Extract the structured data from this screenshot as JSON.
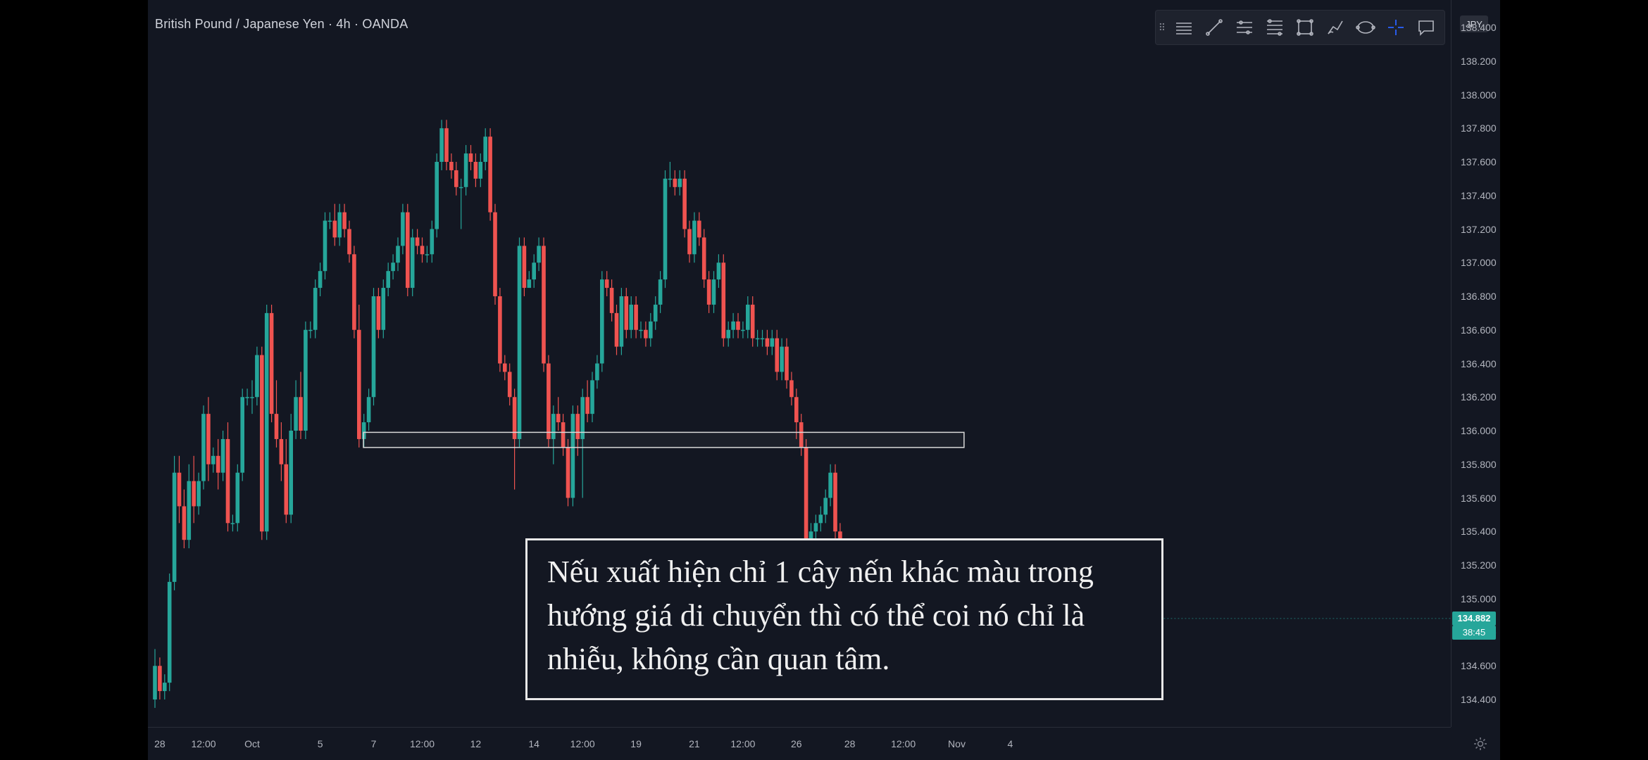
{
  "header": {
    "symbol_title": "British Pound / Japanese Yen · 4h · OANDA",
    "currency_badge": "JPY"
  },
  "toolbar": {
    "items": [
      {
        "icon": "grip-icon"
      },
      {
        "icon": "horizontal-lines-icon"
      },
      {
        "icon": "trend-line-icon"
      },
      {
        "icon": "parallel-channel-icon"
      },
      {
        "icon": "fib-retracement-icon"
      },
      {
        "icon": "rectangle-icon"
      },
      {
        "icon": "brush-icon"
      },
      {
        "icon": "ellipse-icon"
      },
      {
        "icon": "crosshair-icon"
      },
      {
        "icon": "comment-icon"
      }
    ]
  },
  "price_scale": {
    "ticks": [
      "138.400",
      "138.200",
      "138.000",
      "137.800",
      "137.600",
      "137.400",
      "137.200",
      "137.000",
      "136.800",
      "136.600",
      "136.400",
      "136.200",
      "136.000",
      "135.800",
      "135.600",
      "135.400",
      "135.200",
      "135.000",
      "134.800",
      "134.600",
      "134.400"
    ],
    "last_price": "134.882",
    "countdown": "38:45"
  },
  "time_scale": {
    "labels": [
      "28",
      "12:00",
      "Oct",
      "5",
      "7",
      "12:00",
      "12",
      "14",
      "12:00",
      "19",
      "21",
      "12:00",
      "26",
      "28",
      "12:00",
      "Nov",
      "4"
    ]
  },
  "caption": {
    "line1": "Nếu xuất hiện chỉ 1 cây nến khác màu trong",
    "line2": "hướng giá di chuyển thì có thể coi nó chỉ là",
    "line3": "nhiễu, không cần quan tâm."
  },
  "colors": {
    "background": "#131722",
    "bullish": "#26a69a",
    "bearish": "#ef5350",
    "zone_border": "#d9d9d9"
  },
  "chart_data": {
    "type": "candlestick",
    "title": "British Pound / Japanese Yen · 4h · OANDA",
    "ylim": [
      134.2,
      138.45
    ],
    "zone": {
      "low": 135.9,
      "high": 135.99,
      "x_start": 42.9,
      "x_end": 166.5
    },
    "x_ticks": [
      {
        "label": "28",
        "x": 1
      },
      {
        "label": "12:00",
        "x": 10
      },
      {
        "label": "Oct",
        "x": 20
      },
      {
        "label": "5",
        "x": 34
      },
      {
        "label": "7",
        "x": 45
      },
      {
        "label": "12:00",
        "x": 55
      },
      {
        "label": "12",
        "x": 66
      },
      {
        "label": "14",
        "x": 78
      },
      {
        "label": "12:00",
        "x": 88
      },
      {
        "label": "19",
        "x": 99
      },
      {
        "label": "21",
        "x": 111
      },
      {
        "label": "12:00",
        "x": 121
      },
      {
        "label": "26",
        "x": 132
      },
      {
        "label": "28",
        "x": 143
      },
      {
        "label": "12:00",
        "x": 154
      },
      {
        "label": "Nov",
        "x": 165
      },
      {
        "label": "4",
        "x": 176
      }
    ],
    "candles": [
      [
        134.4,
        134.6,
        134.35,
        134.7
      ],
      [
        134.6,
        134.45,
        134.4,
        134.65
      ],
      [
        134.45,
        134.5,
        134.4,
        134.55
      ],
      [
        134.5,
        135.1,
        134.45,
        135.15
      ],
      [
        135.1,
        135.75,
        135.05,
        135.85
      ],
      [
        135.75,
        135.55,
        135.45,
        135.85
      ],
      [
        135.55,
        135.35,
        135.3,
        135.65
      ],
      [
        135.35,
        135.7,
        135.3,
        135.8
      ],
      [
        135.7,
        135.55,
        135.45,
        135.85
      ],
      [
        135.55,
        135.7,
        135.5,
        135.75
      ],
      [
        135.7,
        136.1,
        135.65,
        136.15
      ],
      [
        136.1,
        135.8,
        135.7,
        136.2
      ],
      [
        135.8,
        135.85,
        135.75,
        135.9
      ],
      [
        135.85,
        135.75,
        135.65,
        135.95
      ],
      [
        135.75,
        135.95,
        135.7,
        136.0
      ],
      [
        135.95,
        135.45,
        135.4,
        136.05
      ],
      [
        135.45,
        135.45,
        135.4,
        135.5
      ],
      [
        135.45,
        135.75,
        135.4,
        135.8
      ],
      [
        135.75,
        136.2,
        135.7,
        136.25
      ],
      [
        136.2,
        136.2,
        136.15,
        136.25
      ],
      [
        136.2,
        136.2,
        136.1,
        136.3
      ],
      [
        136.2,
        136.45,
        136.15,
        136.5
      ],
      [
        136.45,
        135.4,
        135.35,
        136.5
      ],
      [
        135.4,
        136.7,
        135.35,
        136.75
      ],
      [
        136.7,
        136.1,
        136.05,
        136.75
      ],
      [
        136.1,
        135.95,
        135.9,
        136.3
      ],
      [
        135.95,
        135.8,
        135.7,
        136.05
      ],
      [
        135.8,
        135.5,
        135.45,
        135.95
      ],
      [
        135.5,
        136.0,
        135.45,
        136.1
      ],
      [
        136.0,
        136.2,
        135.95,
        136.3
      ],
      [
        136.2,
        136.0,
        135.95,
        136.35
      ],
      [
        136.0,
        136.6,
        135.95,
        136.65
      ],
      [
        136.6,
        136.6,
        136.55,
        136.65
      ],
      [
        136.6,
        136.85,
        136.55,
        136.9
      ],
      [
        136.85,
        136.95,
        136.8,
        137.0
      ],
      [
        136.95,
        137.25,
        136.9,
        137.3
      ],
      [
        137.25,
        137.25,
        137.2,
        137.3
      ],
      [
        137.25,
        137.15,
        137.1,
        137.35
      ],
      [
        137.15,
        137.3,
        137.1,
        137.35
      ],
      [
        137.3,
        137.2,
        137.15,
        137.35
      ],
      [
        137.2,
        137.05,
        137.0,
        137.25
      ],
      [
        137.05,
        136.6,
        136.55,
        137.1
      ],
      [
        136.6,
        135.95,
        135.9,
        136.75
      ],
      [
        135.95,
        136.05,
        135.9,
        136.1
      ],
      [
        136.05,
        136.2,
        136.0,
        136.25
      ],
      [
        136.2,
        136.8,
        136.15,
        136.85
      ],
      [
        136.8,
        136.6,
        136.55,
        136.85
      ],
      [
        136.6,
        136.85,
        136.55,
        136.9
      ],
      [
        136.85,
        136.95,
        136.8,
        137.0
      ],
      [
        136.95,
        137.0,
        136.9,
        137.05
      ],
      [
        137.0,
        137.1,
        136.95,
        137.15
      ],
      [
        137.1,
        137.3,
        137.05,
        137.35
      ],
      [
        137.3,
        136.85,
        136.8,
        137.35
      ],
      [
        136.85,
        137.15,
        136.8,
        137.2
      ],
      [
        137.15,
        137.1,
        137.05,
        137.2
      ],
      [
        137.1,
        137.05,
        137.0,
        137.15
      ],
      [
        137.05,
        137.05,
        137.0,
        137.1
      ],
      [
        137.05,
        137.2,
        137.0,
        137.25
      ],
      [
        137.2,
        137.6,
        137.15,
        137.65
      ],
      [
        137.6,
        137.8,
        137.55,
        137.85
      ],
      [
        137.8,
        137.6,
        137.55,
        137.85
      ],
      [
        137.6,
        137.55,
        137.5,
        137.65
      ],
      [
        137.55,
        137.45,
        137.4,
        137.6
      ],
      [
        137.45,
        137.45,
        137.2,
        137.5
      ],
      [
        137.45,
        137.65,
        137.4,
        137.7
      ],
      [
        137.65,
        137.6,
        137.55,
        137.7
      ],
      [
        137.6,
        137.5,
        137.45,
        137.65
      ],
      [
        137.5,
        137.6,
        137.45,
        137.65
      ],
      [
        137.6,
        137.75,
        137.55,
        137.8
      ],
      [
        137.75,
        137.3,
        137.25,
        137.8
      ],
      [
        137.3,
        136.8,
        136.75,
        137.35
      ],
      [
        136.8,
        136.4,
        136.35,
        136.85
      ],
      [
        136.4,
        136.35,
        136.3,
        136.45
      ],
      [
        136.35,
        136.2,
        136.15,
        136.4
      ],
      [
        136.2,
        135.95,
        135.65,
        136.25
      ],
      [
        135.95,
        137.1,
        135.9,
        137.15
      ],
      [
        137.1,
        136.85,
        136.8,
        137.15
      ],
      [
        136.85,
        136.9,
        136.85,
        136.95
      ],
      [
        136.9,
        137.0,
        136.85,
        137.05
      ],
      [
        137.0,
        137.1,
        136.95,
        137.15
      ],
      [
        137.1,
        136.4,
        136.35,
        137.15
      ],
      [
        136.4,
        135.95,
        135.9,
        136.45
      ],
      [
        135.95,
        136.1,
        135.8,
        136.15
      ],
      [
        136.1,
        136.05,
        136.0,
        136.2
      ],
      [
        136.05,
        135.9,
        135.85,
        136.1
      ],
      [
        135.9,
        135.6,
        135.55,
        135.95
      ],
      [
        135.6,
        136.1,
        135.55,
        136.15
      ],
      [
        136.1,
        135.95,
        135.85,
        136.15
      ],
      [
        135.95,
        136.2,
        135.6,
        136.25
      ],
      [
        136.2,
        136.1,
        136.05,
        136.3
      ],
      [
        136.1,
        136.3,
        136.05,
        136.35
      ],
      [
        136.3,
        136.4,
        136.25,
        136.45
      ],
      [
        136.4,
        136.9,
        136.35,
        136.95
      ],
      [
        136.9,
        136.85,
        136.8,
        136.95
      ],
      [
        136.85,
        136.7,
        136.65,
        136.9
      ],
      [
        136.7,
        136.5,
        136.45,
        136.75
      ],
      [
        136.5,
        136.8,
        136.45,
        136.85
      ],
      [
        136.8,
        136.6,
        136.55,
        136.85
      ],
      [
        136.6,
        136.75,
        136.55,
        136.8
      ],
      [
        136.75,
        136.6,
        136.55,
        136.8
      ],
      [
        136.6,
        136.6,
        136.55,
        136.65
      ],
      [
        136.6,
        136.55,
        136.5,
        136.65
      ],
      [
        136.55,
        136.65,
        136.5,
        136.7
      ],
      [
        136.65,
        136.75,
        136.6,
        136.8
      ],
      [
        136.75,
        136.9,
        136.7,
        136.95
      ],
      [
        136.9,
        137.5,
        136.85,
        137.55
      ],
      [
        137.5,
        137.5,
        137.45,
        137.6
      ],
      [
        137.5,
        137.45,
        137.4,
        137.55
      ],
      [
        137.45,
        137.5,
        137.4,
        137.55
      ],
      [
        137.5,
        137.2,
        137.15,
        137.55
      ],
      [
        137.2,
        137.05,
        137.0,
        137.25
      ],
      [
        137.05,
        137.25,
        137.0,
        137.3
      ],
      [
        137.25,
        137.15,
        137.1,
        137.3
      ],
      [
        137.15,
        136.9,
        136.85,
        137.2
      ],
      [
        136.9,
        136.75,
        136.7,
        136.95
      ],
      [
        136.75,
        136.9,
        136.7,
        136.95
      ],
      [
        136.9,
        137.0,
        136.85,
        137.05
      ],
      [
        137.0,
        136.55,
        136.5,
        137.05
      ],
      [
        136.55,
        136.6,
        136.5,
        136.65
      ],
      [
        136.6,
        136.65,
        136.55,
        136.7
      ],
      [
        136.65,
        136.6,
        136.55,
        136.7
      ],
      [
        136.6,
        136.6,
        136.55,
        136.65
      ],
      [
        136.6,
        136.75,
        136.55,
        136.8
      ],
      [
        136.75,
        136.55,
        136.5,
        136.8
      ],
      [
        136.55,
        136.55,
        136.5,
        136.6
      ],
      [
        136.55,
        136.55,
        136.5,
        136.6
      ],
      [
        136.55,
        136.5,
        136.45,
        136.6
      ],
      [
        136.5,
        136.55,
        136.45,
        136.6
      ],
      [
        136.55,
        136.35,
        136.3,
        136.6
      ],
      [
        136.35,
        136.5,
        136.3,
        136.55
      ],
      [
        136.5,
        136.3,
        136.25,
        136.55
      ],
      [
        136.3,
        136.2,
        136.15,
        136.35
      ],
      [
        136.2,
        136.05,
        135.95,
        136.25
      ],
      [
        136.05,
        135.9,
        135.85,
        136.1
      ],
      [
        135.9,
        135.2,
        135.15,
        135.95
      ],
      [
        135.2,
        135.4,
        135.15,
        135.45
      ],
      [
        135.4,
        135.45,
        135.35,
        135.5
      ],
      [
        135.45,
        135.5,
        135.4,
        135.55
      ],
      [
        135.5,
        135.6,
        135.45,
        135.65
      ],
      [
        135.6,
        135.75,
        135.55,
        135.8
      ],
      [
        135.75,
        135.4,
        135.35,
        135.8
      ],
      [
        135.4,
        135.0,
        134.95,
        135.45
      ],
      [
        135.0,
        135.25,
        134.95,
        135.3
      ],
      [
        135.25,
        135.3,
        135.2,
        135.35
      ],
      [
        135.3,
        135.15,
        135.1,
        135.35
      ],
      [
        135.15,
        134.85,
        134.8,
        135.2
      ],
      [
        134.85,
        134.882,
        134.55,
        135.0
      ]
    ]
  }
}
